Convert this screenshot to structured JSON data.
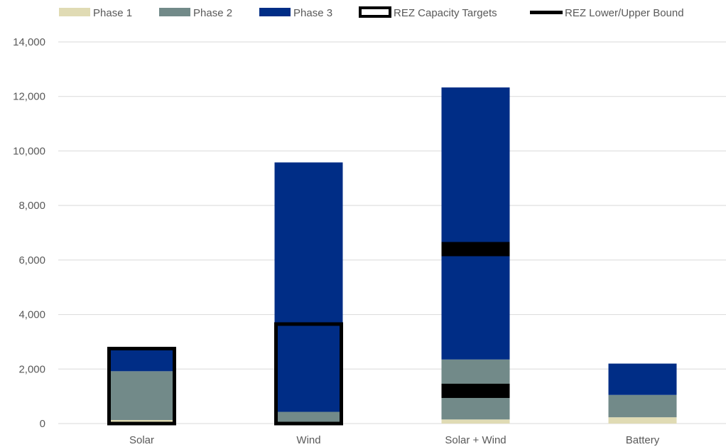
{
  "chart_data": {
    "type": "bar",
    "stacked": true,
    "title": "",
    "xlabel": "",
    "ylabel": "",
    "categories": [
      "Solar",
      "Wind",
      "Solar + Wind",
      "Battery"
    ],
    "series": [
      {
        "name": "Phase 1",
        "color": "#e0dbb4",
        "values": [
          130,
          50,
          150,
          230
        ]
      },
      {
        "name": "Phase 2",
        "color": "#728a89",
        "values": [
          1790,
          380,
          2200,
          820
        ]
      },
      {
        "name": "Phase 3",
        "color": "#002d86",
        "values": [
          770,
          9150,
          9980,
          1150
        ]
      }
    ],
    "overlays": {
      "targets": {
        "name": "REZ Capacity Targets",
        "values": [
          2750,
          3650,
          null,
          null
        ]
      },
      "bounds": {
        "name": "REZ Lower/Upper Bound",
        "values": [
          [
            0,
            2750
          ],
          [
            0,
            3650
          ],
          [
            1200,
            6400
          ],
          [
            null,
            null
          ]
        ]
      }
    },
    "ylim": [
      0,
      14000
    ],
    "yticks": [
      0,
      2000,
      4000,
      6000,
      8000,
      10000,
      12000,
      14000
    ],
    "grid": true,
    "legend_position": "top"
  }
}
